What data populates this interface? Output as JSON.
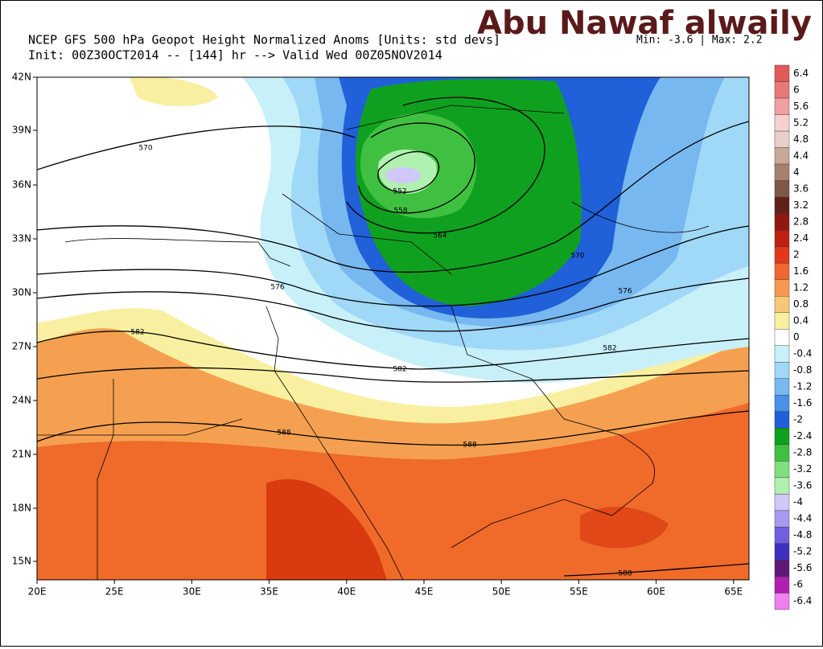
{
  "header": {
    "title": "NCEP GFS 500 hPa Geopot Height Normalized Anoms [Units: std devs]",
    "min_max": "Min: -3.6 | Max: 2.2",
    "valid": "Init: 00Z30OCT2014 -- [144] hr --> Valid Wed 00Z05NOV2014",
    "watermark": "Abu Nawaf alwaily"
  },
  "map": {
    "lat_labels": [
      "42N",
      "39N",
      "36N",
      "33N",
      "30N",
      "27N",
      "24N",
      "21N",
      "18N",
      "15N"
    ],
    "lon_labels": [
      "20E",
      "25E",
      "30E",
      "35E",
      "40E",
      "45E",
      "50E",
      "55E",
      "60E",
      "65E"
    ],
    "contour_labels": [
      "570",
      "552",
      "558",
      "564",
      "570",
      "576",
      "576",
      "582",
      "582",
      "582",
      "588",
      "588",
      "588"
    ]
  },
  "colorbar": {
    "labels": [
      "6.4",
      "6",
      "5.6",
      "5.2",
      "4.8",
      "4.4",
      "4",
      "3.6",
      "3.2",
      "2.8",
      "2.4",
      "2",
      "1.6",
      "1.2",
      "0.8",
      "0.4",
      "0",
      "-0.4",
      "-0.8",
      "-1.2",
      "-1.6",
      "-2",
      "-2.4",
      "-2.8",
      "-3.2",
      "-3.6",
      "-4",
      "-4.4",
      "-4.8",
      "-5.2",
      "-5.6",
      "-6",
      "-6.4"
    ],
    "colors": [
      "#e05a5a",
      "#e87878",
      "#f0a0a0",
      "#f8d0d0",
      "#e8d0c8",
      "#c8a898",
      "#a88070",
      "#805848",
      "#602018",
      "#901810",
      "#c02010",
      "#e03818",
      "#f06830",
      "#f89850",
      "#f8c878",
      "#f8f0a0",
      "#ffffff",
      "#c8f0f8",
      "#a0d8f8",
      "#78b8f0",
      "#4890e8",
      "#2060d8",
      "#10a020",
      "#40c040",
      "#80e080",
      "#b0f0b0",
      "#d0c8f8",
      "#a898f0",
      "#7060e0",
      "#4030c0",
      "#601878",
      "#b020b0",
      "#f080f0"
    ]
  }
}
